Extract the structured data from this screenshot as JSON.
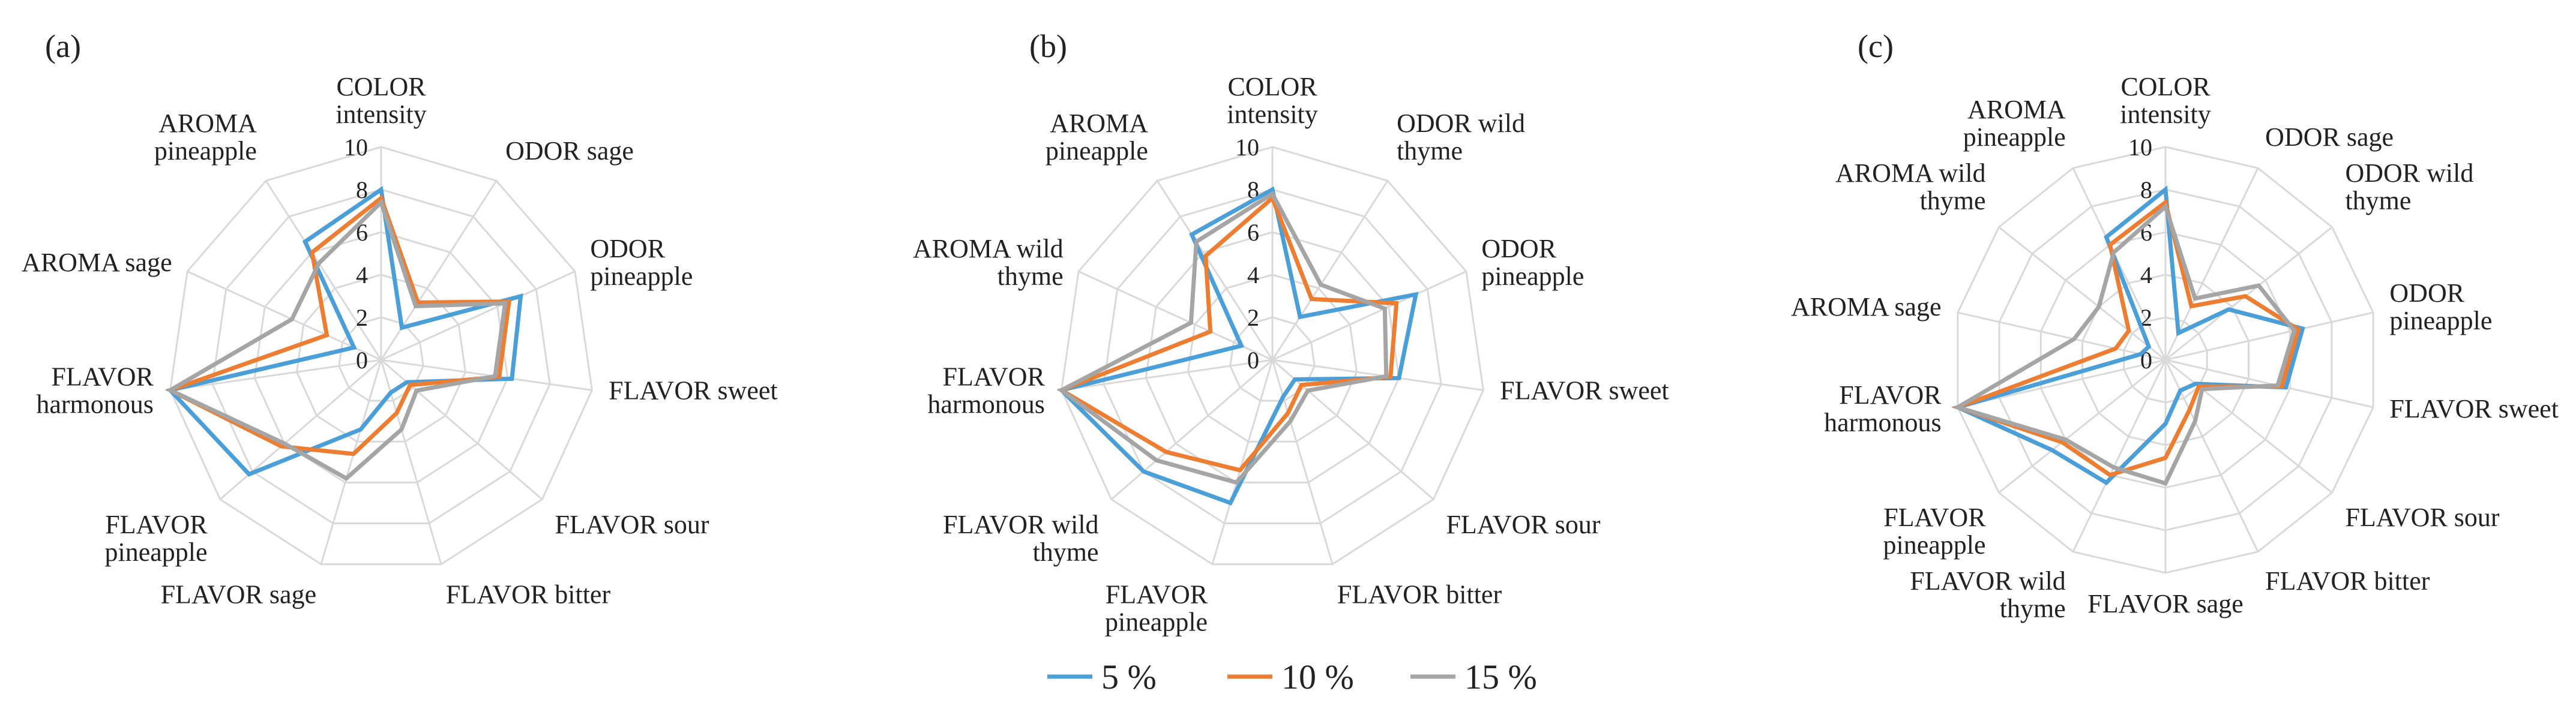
{
  "figure": {
    "legend": [
      {
        "label": "5 %",
        "color": "#4a9fd9"
      },
      {
        "label": "10 %",
        "color": "#ed7d31"
      },
      {
        "label": "15 %",
        "color": "#a5a5a5"
      }
    ]
  },
  "chart_data": [
    {
      "type": "radar",
      "panel_label": "(a)",
      "axes": [
        [
          "COLOR",
          "intensity"
        ],
        [
          "ODOR sage"
        ],
        [
          "ODOR",
          "pineapple"
        ],
        [
          "FLAVOR sweet"
        ],
        [
          "FLAVOR sour"
        ],
        [
          "FLAVOR bitter"
        ],
        [
          "FLAVOR sage"
        ],
        [
          "FLAVOR",
          "pineapple"
        ],
        [
          "FLAVOR",
          "harmonous"
        ],
        [
          "AROMA sage"
        ],
        [
          "AROMA",
          "pineapple"
        ]
      ],
      "ticks": [
        0,
        2,
        4,
        6,
        8,
        10
      ],
      "rlim": [
        0,
        10
      ],
      "series": [
        {
          "name": "5 %",
          "values": [
            8.0,
            1.8,
            7.2,
            6.2,
            1.6,
            1.6,
            3.4,
            8.2,
            10.0,
            1.4,
            6.6
          ]
        },
        {
          "name": "10 %",
          "values": [
            7.6,
            3.2,
            6.6,
            5.6,
            1.8,
            2.6,
            4.6,
            6.2,
            10.0,
            2.8,
            6.0
          ]
        },
        {
          "name": "15 %",
          "values": [
            7.4,
            3.0,
            6.4,
            5.4,
            2.2,
            3.4,
            5.8,
            6.0,
            10.0,
            4.6,
            5.4
          ]
        }
      ]
    },
    {
      "type": "radar",
      "panel_label": "(b)",
      "axes": [
        [
          "COLOR",
          "intensity"
        ],
        [
          "ODOR wild",
          "thyme"
        ],
        [
          "ODOR",
          "pineapple"
        ],
        [
          "FLAVOR sweet"
        ],
        [
          "FLAVOR sour"
        ],
        [
          "FLAVOR bitter"
        ],
        [
          "FLAVOR",
          "pineapple"
        ],
        [
          "FLAVOR wild",
          "thyme"
        ],
        [
          "FLAVOR",
          "harmonous"
        ],
        [
          "AROMA wild",
          "thyme"
        ],
        [
          "AROMA",
          "pineapple"
        ]
      ],
      "ticks": [
        0,
        2,
        4,
        6,
        8,
        10
      ],
      "rlim": [
        0,
        10
      ],
      "series": [
        {
          "name": "5 %",
          "values": [
            8.0,
            2.4,
            7.4,
            6.0,
            1.4,
            1.8,
            7.0,
            8.0,
            10.0,
            1.6,
            7.0
          ]
        },
        {
          "name": "10 %",
          "values": [
            7.6,
            3.4,
            6.4,
            5.6,
            1.8,
            2.6,
            5.4,
            6.6,
            10.0,
            3.2,
            5.8
          ]
        },
        {
          "name": "15 %",
          "values": [
            7.8,
            4.2,
            5.8,
            5.4,
            2.2,
            3.0,
            6.0,
            7.2,
            10.0,
            4.2,
            6.6
          ]
        }
      ]
    },
    {
      "type": "radar",
      "panel_label": "(c)",
      "axes": [
        [
          "COLOR",
          "intensity"
        ],
        [
          "ODOR sage"
        ],
        [
          "ODOR wild",
          "thyme"
        ],
        [
          "ODOR",
          "pineapple"
        ],
        [
          "FLAVOR sweet"
        ],
        [
          "FLAVOR sour"
        ],
        [
          "FLAVOR bitter"
        ],
        [
          "FLAVOR sage"
        ],
        [
          "FLAVOR wild",
          "thyme"
        ],
        [
          "FLAVOR",
          "pineapple"
        ],
        [
          "FLAVOR",
          "harmonous"
        ],
        [
          "AROMA sage"
        ],
        [
          "AROMA wild",
          "thyme"
        ],
        [
          "AROMA",
          "pineapple"
        ]
      ],
      "ticks": [
        0,
        2,
        4,
        6,
        8,
        10
      ],
      "rlim": [
        0,
        10
      ],
      "series": [
        {
          "name": "5 %",
          "values": [
            8.0,
            1.4,
            3.8,
            6.6,
            5.8,
            1.8,
            1.6,
            3.0,
            6.4,
            6.8,
            10.0,
            1.2,
            1.0,
            6.4
          ]
        },
        {
          "name": "10 %",
          "values": [
            7.4,
            2.8,
            4.8,
            6.4,
            5.6,
            2.0,
            2.6,
            4.6,
            6.0,
            6.2,
            10.0,
            2.4,
            2.2,
            6.0
          ]
        },
        {
          "name": "15 %",
          "values": [
            7.2,
            3.2,
            5.6,
            6.2,
            5.4,
            2.2,
            3.2,
            5.8,
            5.6,
            6.0,
            10.0,
            4.4,
            4.0,
            5.6
          ]
        }
      ]
    }
  ]
}
